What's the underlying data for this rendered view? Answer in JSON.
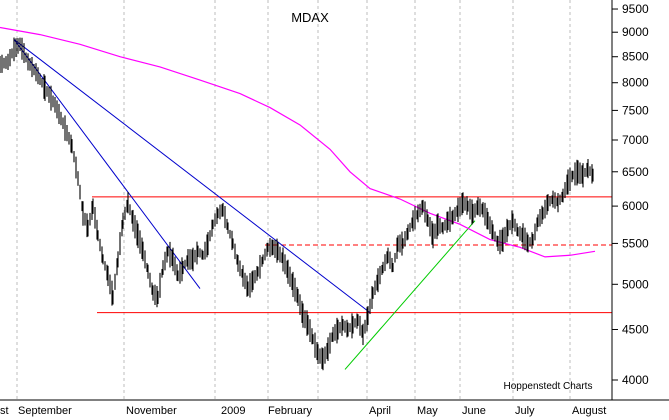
{
  "chart_data": {
    "type": "candlestick",
    "title": "MDAX",
    "credit": "Hoppenstedt Charts",
    "y_axis": {
      "scale": "log",
      "position": "right",
      "ticks": [
        4000,
        4500,
        5000,
        5500,
        6000,
        6500,
        7000,
        7500,
        8000,
        8500,
        9000,
        9500
      ],
      "tick_labels": [
        "4000",
        "4500",
        "5000",
        "5500",
        "6000",
        "6500",
        "7000",
        "7500",
        "8000",
        "8500",
        "9000",
        "9500"
      ]
    },
    "x_axis": {
      "labels": [
        "st",
        "September",
        "November",
        "2009",
        "February",
        "April",
        "May",
        "June",
        "July",
        "August"
      ],
      "gridlines": "dashed vertical"
    },
    "series": [
      {
        "kind": "price",
        "points": [
          {
            "t": 0,
            "v": 8350
          },
          {
            "t": 8,
            "v": 8400
          },
          {
            "t": 14,
            "v": 8650
          },
          {
            "t": 20,
            "v": 8750
          },
          {
            "t": 28,
            "v": 8400
          },
          {
            "t": 36,
            "v": 8200
          },
          {
            "t": 45,
            "v": 7900
          },
          {
            "t": 55,
            "v": 7600
          },
          {
            "t": 65,
            "v": 7200
          },
          {
            "t": 72,
            "v": 6900
          },
          {
            "t": 78,
            "v": 6400
          },
          {
            "t": 83,
            "v": 5900
          },
          {
            "t": 88,
            "v": 5700
          },
          {
            "t": 93,
            "v": 6000
          },
          {
            "t": 98,
            "v": 5600
          },
          {
            "t": 103,
            "v": 5300
          },
          {
            "t": 108,
            "v": 5100
          },
          {
            "t": 113,
            "v": 4850
          },
          {
            "t": 118,
            "v": 5300
          },
          {
            "t": 123,
            "v": 5800
          },
          {
            "t": 128,
            "v": 6050
          },
          {
            "t": 133,
            "v": 5800
          },
          {
            "t": 138,
            "v": 5600
          },
          {
            "t": 143,
            "v": 5400
          },
          {
            "t": 148,
            "v": 5150
          },
          {
            "t": 153,
            "v": 4900
          },
          {
            "t": 158,
            "v": 4850
          },
          {
            "t": 163,
            "v": 5200
          },
          {
            "t": 168,
            "v": 5400
          },
          {
            "t": 173,
            "v": 5300
          },
          {
            "t": 178,
            "v": 5100
          },
          {
            "t": 183,
            "v": 5200
          },
          {
            "t": 188,
            "v": 5300
          },
          {
            "t": 193,
            "v": 5300
          },
          {
            "t": 198,
            "v": 5400
          },
          {
            "t": 203,
            "v": 5350
          },
          {
            "t": 208,
            "v": 5500
          },
          {
            "t": 213,
            "v": 5750
          },
          {
            "t": 218,
            "v": 5900
          },
          {
            "t": 223,
            "v": 5950
          },
          {
            "t": 228,
            "v": 5700
          },
          {
            "t": 233,
            "v": 5500
          },
          {
            "t": 238,
            "v": 5250
          },
          {
            "t": 243,
            "v": 5100
          },
          {
            "t": 248,
            "v": 4950
          },
          {
            "t": 253,
            "v": 5050
          },
          {
            "t": 258,
            "v": 5150
          },
          {
            "t": 263,
            "v": 5300
          },
          {
            "t": 268,
            "v": 5450
          },
          {
            "t": 273,
            "v": 5450
          },
          {
            "t": 278,
            "v": 5400
          },
          {
            "t": 283,
            "v": 5300
          },
          {
            "t": 288,
            "v": 5150
          },
          {
            "t": 293,
            "v": 5000
          },
          {
            "t": 298,
            "v": 4850
          },
          {
            "t": 303,
            "v": 4650
          },
          {
            "t": 308,
            "v": 4550
          },
          {
            "t": 313,
            "v": 4400
          },
          {
            "t": 318,
            "v": 4250
          },
          {
            "t": 323,
            "v": 4200
          },
          {
            "t": 328,
            "v": 4300
          },
          {
            "t": 333,
            "v": 4450
          },
          {
            "t": 338,
            "v": 4500
          },
          {
            "t": 343,
            "v": 4550
          },
          {
            "t": 348,
            "v": 4500
          },
          {
            "t": 353,
            "v": 4550
          },
          {
            "t": 358,
            "v": 4600
          },
          {
            "t": 363,
            "v": 4450
          },
          {
            "t": 368,
            "v": 4650
          },
          {
            "t": 373,
            "v": 4900
          },
          {
            "t": 378,
            "v": 5050
          },
          {
            "t": 383,
            "v": 5200
          },
          {
            "t": 388,
            "v": 5350
          },
          {
            "t": 393,
            "v": 5200
          },
          {
            "t": 398,
            "v": 5500
          },
          {
            "t": 403,
            "v": 5500
          },
          {
            "t": 408,
            "v": 5650
          },
          {
            "t": 413,
            "v": 5800
          },
          {
            "t": 418,
            "v": 5900
          },
          {
            "t": 423,
            "v": 6000
          },
          {
            "t": 428,
            "v": 5800
          },
          {
            "t": 433,
            "v": 5600
          },
          {
            "t": 438,
            "v": 5750
          },
          {
            "t": 443,
            "v": 5700
          },
          {
            "t": 448,
            "v": 5800
          },
          {
            "t": 453,
            "v": 5850
          },
          {
            "t": 458,
            "v": 5950
          },
          {
            "t": 463,
            "v": 6050
          },
          {
            "t": 468,
            "v": 6000
          },
          {
            "t": 473,
            "v": 5900
          },
          {
            "t": 478,
            "v": 6000
          },
          {
            "t": 483,
            "v": 5950
          },
          {
            "t": 488,
            "v": 5800
          },
          {
            "t": 493,
            "v": 5650
          },
          {
            "t": 498,
            "v": 5500
          },
          {
            "t": 503,
            "v": 5550
          },
          {
            "t": 508,
            "v": 5700
          },
          {
            "t": 513,
            "v": 5800
          },
          {
            "t": 518,
            "v": 5650
          },
          {
            "t": 523,
            "v": 5600
          },
          {
            "t": 528,
            "v": 5500
          },
          {
            "t": 533,
            "v": 5550
          },
          {
            "t": 538,
            "v": 5800
          },
          {
            "t": 543,
            "v": 5900
          },
          {
            "t": 548,
            "v": 6050
          },
          {
            "t": 553,
            "v": 6100
          },
          {
            "t": 558,
            "v": 6050
          },
          {
            "t": 563,
            "v": 6150
          },
          {
            "t": 568,
            "v": 6350
          },
          {
            "t": 573,
            "v": 6450
          },
          {
            "t": 578,
            "v": 6500
          },
          {
            "t": 583,
            "v": 6450
          },
          {
            "t": 588,
            "v": 6550
          },
          {
            "t": 593,
            "v": 6450
          }
        ]
      },
      {
        "kind": "moving_average",
        "color": "#ff00ff",
        "points": [
          {
            "t": 0,
            "v": 9100
          },
          {
            "t": 40,
            "v": 8950
          },
          {
            "t": 80,
            "v": 8750
          },
          {
            "t": 120,
            "v": 8500
          },
          {
            "t": 160,
            "v": 8300
          },
          {
            "t": 200,
            "v": 8050
          },
          {
            "t": 240,
            "v": 7800
          },
          {
            "t": 270,
            "v": 7550
          },
          {
            "t": 300,
            "v": 7250
          },
          {
            "t": 330,
            "v": 6850
          },
          {
            "t": 350,
            "v": 6500
          },
          {
            "t": 370,
            "v": 6250
          },
          {
            "t": 400,
            "v": 6100
          },
          {
            "t": 430,
            "v": 5900
          },
          {
            "t": 460,
            "v": 5750
          },
          {
            "t": 490,
            "v": 5550
          },
          {
            "t": 520,
            "v": 5450
          },
          {
            "t": 545,
            "v": 5330
          },
          {
            "t": 570,
            "v": 5350
          },
          {
            "t": 595,
            "v": 5400
          }
        ]
      }
    ],
    "trendlines": [
      {
        "kind": "resistance",
        "color": "#0000cc",
        "from": {
          "t": 14,
          "v": 8850
        },
        "to": {
          "t": 370,
          "v": 4680
        }
      },
      {
        "kind": "resistance",
        "color": "#0000cc",
        "from": {
          "t": 14,
          "v": 8850
        },
        "to": {
          "t": 200,
          "v": 4950
        }
      },
      {
        "kind": "support",
        "color": "#00cc00",
        "from": {
          "t": 345,
          "v": 4100
        },
        "to": {
          "t": 475,
          "v": 5800
        }
      }
    ],
    "horizontal_lines": [
      {
        "color": "#ff0000",
        "style": "solid",
        "value": 6130,
        "from_t": 92,
        "to_t": 612
      },
      {
        "color": "#ff0000",
        "style": "dashed",
        "value": 5480,
        "from_t": 265,
        "to_t": 612
      },
      {
        "color": "#ff0000",
        "style": "solid",
        "value": 4680,
        "from_t": 97,
        "to_t": 612
      }
    ]
  }
}
